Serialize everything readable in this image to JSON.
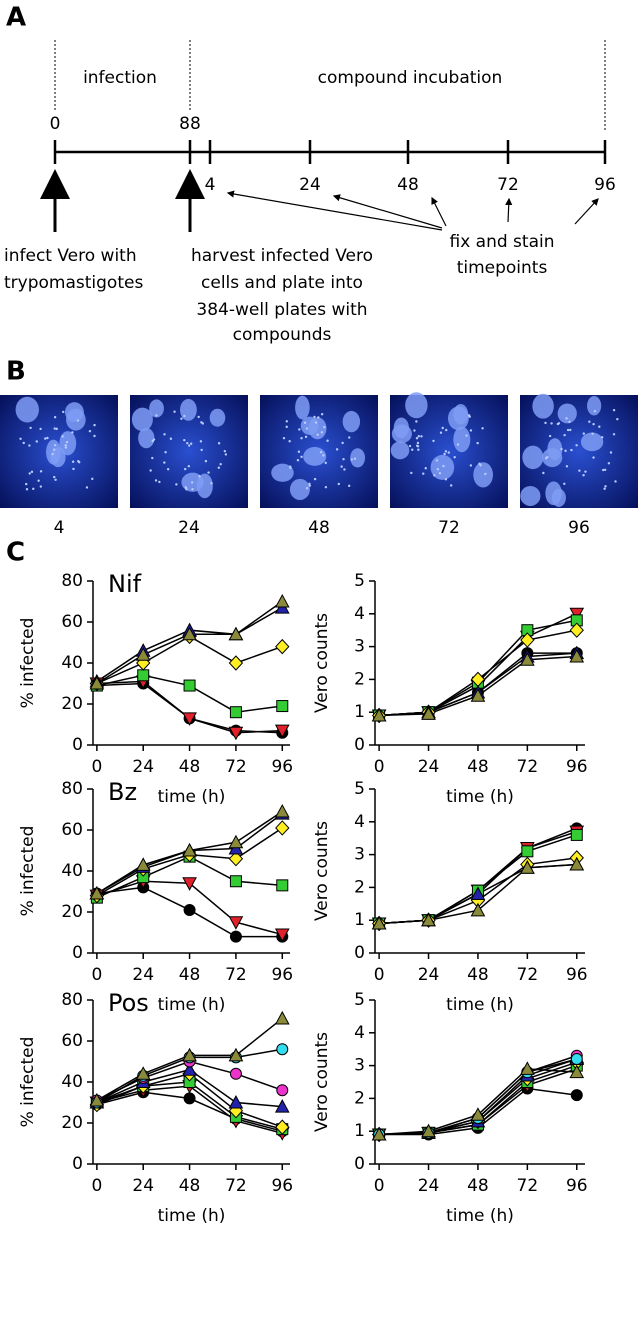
{
  "panel_labels": [
    "A",
    "B",
    "C"
  ],
  "timeline": {
    "phases": [
      "infection",
      "compound incubation"
    ],
    "top_ticks": [
      "0",
      "88"
    ],
    "bottom_ticks": [
      "4",
      "24",
      "48",
      "72",
      "96"
    ],
    "note_infect": [
      "infect Vero with",
      "trypomastigotes"
    ],
    "note_harvest": [
      "harvest infected Vero",
      "cells and plate into",
      "384-well plates with",
      "compounds"
    ],
    "note_fix": [
      "fix and stain",
      "timepoints"
    ]
  },
  "images": {
    "labels": [
      "4",
      "24",
      "48",
      "72",
      "96"
    ]
  },
  "chart_data": [
    {
      "type": "line",
      "title": "Nif",
      "ylabel": "% infected",
      "xlabel": "time (h)",
      "x": [
        0,
        24,
        48,
        72,
        96
      ],
      "xlim": [
        -2,
        100
      ],
      "xticks": [
        0,
        24,
        48,
        72,
        96
      ],
      "ylim": [
        0,
        80
      ],
      "yticks": [
        0,
        20,
        40,
        60,
        80
      ],
      "series": [
        {
          "color": "#000000",
          "marker": "circle",
          "values": [
            29,
            30,
            13,
            7,
            6
          ]
        },
        {
          "color": "#e0202a",
          "marker": "down-triangle",
          "values": [
            30,
            31,
            13,
            6,
            7
          ]
        },
        {
          "color": "#33cc33",
          "marker": "square",
          "values": [
            29,
            34,
            29,
            16,
            19
          ]
        },
        {
          "color": "#ffee22",
          "marker": "diamond",
          "values": [
            30,
            40,
            53,
            40,
            48
          ]
        },
        {
          "color": "#2222aa",
          "marker": "triangle",
          "values": [
            31,
            46,
            56,
            54,
            67
          ]
        },
        {
          "color": "#8a8a3a",
          "marker": "triangle",
          "values": [
            30,
            44,
            54,
            54,
            70
          ]
        }
      ]
    },
    {
      "type": "line",
      "ylabel": "Vero counts",
      "xlabel": "time (h)",
      "x": [
        0,
        24,
        48,
        72,
        96
      ],
      "xlim": [
        -2,
        100
      ],
      "xticks": [
        0,
        24,
        48,
        72,
        96
      ],
      "ylim": [
        0,
        5
      ],
      "yticks": [
        0,
        1,
        2,
        3,
        4,
        5
      ],
      "series": [
        {
          "color": "#000000",
          "marker": "circle",
          "values": [
            0.9,
            1.0,
            1.6,
            2.8,
            2.8
          ]
        },
        {
          "color": "#e0202a",
          "marker": "down-triangle",
          "values": [
            0.9,
            1.0,
            1.8,
            3.3,
            4.0
          ]
        },
        {
          "color": "#33cc33",
          "marker": "square",
          "values": [
            0.9,
            1.0,
            1.9,
            3.5,
            3.8
          ]
        },
        {
          "color": "#ffee22",
          "marker": "diamond",
          "values": [
            0.9,
            1.0,
            2.0,
            3.2,
            3.5
          ]
        },
        {
          "color": "#2222aa",
          "marker": "triangle",
          "values": [
            0.9,
            1.0,
            1.6,
            2.7,
            2.8
          ]
        },
        {
          "color": "#8a8a3a",
          "marker": "triangle",
          "values": [
            0.9,
            0.95,
            1.5,
            2.6,
            2.7
          ]
        }
      ]
    },
    {
      "type": "line",
      "title": "Bz",
      "ylabel": "% infected",
      "xlabel": "time (h)",
      "x": [
        0,
        24,
        48,
        72,
        96
      ],
      "xlim": [
        -2,
        100
      ],
      "xticks": [
        0,
        24,
        48,
        72,
        96
      ],
      "ylim": [
        0,
        80
      ],
      "yticks": [
        0,
        20,
        40,
        60,
        80
      ],
      "series": [
        {
          "color": "#000000",
          "marker": "circle",
          "values": [
            29,
            32,
            21,
            8,
            8
          ]
        },
        {
          "color": "#e0202a",
          "marker": "down-triangle",
          "values": [
            28,
            35,
            34,
            15,
            9
          ]
        },
        {
          "color": "#33cc33",
          "marker": "square",
          "values": [
            27,
            37,
            47,
            35,
            33
          ]
        },
        {
          "color": "#ffee22",
          "marker": "diamond",
          "values": [
            28,
            41,
            48,
            46,
            61
          ]
        },
        {
          "color": "#2222aa",
          "marker": "triangle",
          "values": [
            29,
            42,
            50,
            51,
            68
          ]
        },
        {
          "color": "#8a8a3a",
          "marker": "triangle",
          "values": [
            29,
            43,
            50,
            54,
            69
          ]
        }
      ]
    },
    {
      "type": "line",
      "ylabel": "Vero counts",
      "xlabel": "time (h)",
      "x": [
        0,
        24,
        48,
        72,
        96
      ],
      "xlim": [
        -2,
        100
      ],
      "xticks": [
        0,
        24,
        48,
        72,
        96
      ],
      "ylim": [
        0,
        5
      ],
      "yticks": [
        0,
        1,
        2,
        3,
        4,
        5
      ],
      "series": [
        {
          "color": "#000000",
          "marker": "circle",
          "values": [
            0.9,
            1.0,
            1.8,
            3.2,
            3.8
          ]
        },
        {
          "color": "#e0202a",
          "marker": "down-triangle",
          "values": [
            0.9,
            1.0,
            1.9,
            3.2,
            3.7
          ]
        },
        {
          "color": "#33cc33",
          "marker": "square",
          "values": [
            0.9,
            1.0,
            1.9,
            3.1,
            3.6
          ]
        },
        {
          "color": "#ffee22",
          "marker": "diamond",
          "values": [
            0.9,
            1.0,
            1.6,
            2.7,
            2.9
          ]
        },
        {
          "color": "#2222aa",
          "marker": "triangle",
          "values": [
            0.9,
            1.0,
            1.8,
            2.6,
            2.7
          ]
        },
        {
          "color": "#8a8a3a",
          "marker": "triangle",
          "values": [
            0.9,
            1.0,
            1.3,
            2.6,
            2.7
          ]
        }
      ]
    },
    {
      "type": "line",
      "title": "Pos",
      "ylabel": "% infected",
      "xlabel": "time (h)",
      "x": [
        0,
        24,
        48,
        72,
        96
      ],
      "xlim": [
        -2,
        100
      ],
      "xticks": [
        0,
        24,
        48,
        72,
        96
      ],
      "ylim": [
        0,
        80
      ],
      "yticks": [
        0,
        20,
        40,
        60,
        80
      ],
      "series": [
        {
          "color": "#000000",
          "marker": "circle",
          "values": [
            29,
            35,
            32,
            22,
            16
          ]
        },
        {
          "color": "#e0202a",
          "marker": "down-triangle",
          "values": [
            30,
            36,
            38,
            21,
            15
          ]
        },
        {
          "color": "#33cc33",
          "marker": "square",
          "values": [
            30,
            38,
            40,
            23,
            17
          ]
        },
        {
          "color": "#ffee22",
          "marker": "diamond",
          "values": [
            29,
            38,
            44,
            26,
            18
          ]
        },
        {
          "color": "#2222aa",
          "marker": "triangle",
          "values": [
            30,
            40,
            46,
            30,
            28
          ]
        },
        {
          "color": "#ee33cc",
          "marker": "circle",
          "values": [
            31,
            42,
            50,
            44,
            36
          ]
        },
        {
          "color": "#33ddee",
          "marker": "circle",
          "values": [
            30,
            43,
            52,
            52,
            56
          ]
        },
        {
          "color": "#8a8a3a",
          "marker": "triangle",
          "values": [
            31,
            44,
            53,
            53,
            71
          ]
        }
      ]
    },
    {
      "type": "line",
      "ylabel": "Vero counts",
      "xlabel": "time (h)",
      "x": [
        0,
        24,
        48,
        72,
        96
      ],
      "xlim": [
        -2,
        100
      ],
      "xticks": [
        0,
        24,
        48,
        72,
        96
      ],
      "ylim": [
        0,
        5
      ],
      "yticks": [
        0,
        1,
        2,
        3,
        4,
        5
      ],
      "series": [
        {
          "color": "#000000",
          "marker": "circle",
          "values": [
            0.9,
            0.9,
            1.1,
            2.3,
            2.1
          ]
        },
        {
          "color": "#e0202a",
          "marker": "down-triangle",
          "values": [
            0.9,
            0.95,
            1.2,
            2.4,
            2.9
          ]
        },
        {
          "color": "#33cc33",
          "marker": "square",
          "values": [
            0.9,
            0.95,
            1.2,
            2.5,
            3.0
          ]
        },
        {
          "color": "#ffee22",
          "marker": "diamond",
          "values": [
            0.9,
            0.95,
            1.3,
            2.6,
            3.1
          ]
        },
        {
          "color": "#2222aa",
          "marker": "triangle",
          "values": [
            0.9,
            0.95,
            1.3,
            2.7,
            3.2
          ]
        },
        {
          "color": "#ee33cc",
          "marker": "circle",
          "values": [
            0.9,
            0.95,
            1.4,
            2.8,
            3.3
          ]
        },
        {
          "color": "#33ddee",
          "marker": "circle",
          "values": [
            0.9,
            0.95,
            1.4,
            2.8,
            3.2
          ]
        },
        {
          "color": "#8a8a3a",
          "marker": "triangle",
          "values": [
            0.9,
            1.0,
            1.5,
            2.9,
            2.8
          ]
        }
      ]
    }
  ]
}
